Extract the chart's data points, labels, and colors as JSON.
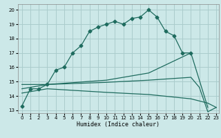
{
  "xlabel": "Humidex (Indice chaleur)",
  "bg_color": "#cce8e8",
  "grid_color": "#aacccc",
  "line_color": "#1e6b5e",
  "line1_x": [
    0,
    1,
    2,
    3,
    4,
    5,
    6,
    7,
    8,
    9,
    10,
    11,
    12,
    13,
    14,
    15,
    16,
    17,
    18,
    19,
    20
  ],
  "line1_y": [
    13.3,
    14.5,
    14.5,
    14.8,
    15.8,
    16.0,
    17.0,
    17.5,
    18.5,
    18.8,
    19.0,
    19.2,
    19.0,
    19.4,
    19.5,
    20.0,
    19.5,
    18.5,
    18.2,
    17.0,
    17.0
  ],
  "line2_x": [
    0,
    3,
    10,
    15,
    20,
    22
  ],
  "line2_y": [
    14.8,
    14.8,
    15.1,
    15.6,
    17.0,
    13.2
  ],
  "line3_x": [
    0,
    3,
    10,
    15,
    20,
    21,
    22,
    23
  ],
  "line3_y": [
    14.5,
    14.8,
    14.95,
    15.1,
    15.3,
    14.6,
    12.9,
    13.2
  ],
  "line4_x": [
    0,
    3,
    10,
    15,
    20,
    22,
    23
  ],
  "line4_y": [
    14.2,
    14.5,
    14.25,
    14.1,
    13.8,
    13.5,
    13.2
  ],
  "xlim": [
    -0.5,
    23.3
  ],
  "ylim": [
    12.8,
    20.4
  ],
  "xticks": [
    0,
    1,
    2,
    3,
    4,
    5,
    6,
    7,
    8,
    9,
    10,
    11,
    12,
    13,
    14,
    15,
    16,
    17,
    18,
    19,
    20,
    21,
    22,
    23
  ],
  "yticks": [
    13,
    14,
    15,
    16,
    17,
    18,
    19,
    20
  ]
}
